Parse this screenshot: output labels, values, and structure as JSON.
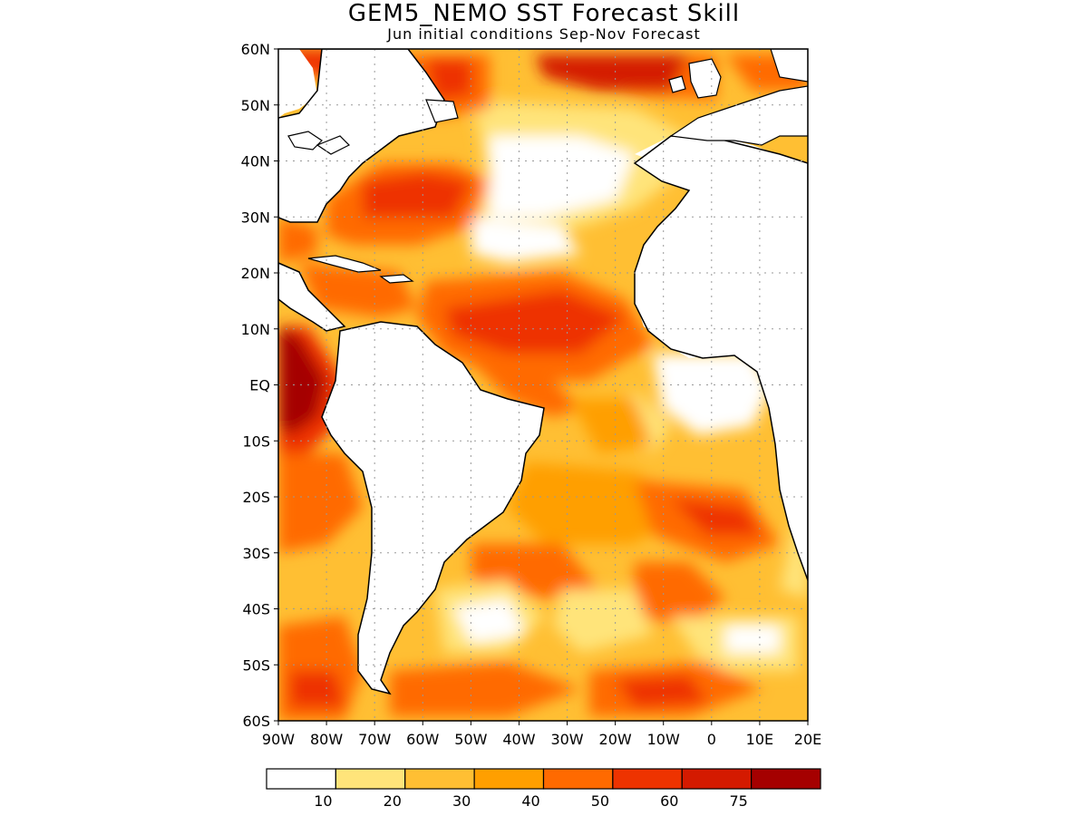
{
  "title": "GEM5_NEMO SST Forecast Skill",
  "subtitle": "Jun initial conditions  Sep-Nov Forecast",
  "lat_labels": [
    "60N",
    "50N",
    "40N",
    "30N",
    "20N",
    "10N",
    "EQ",
    "10S",
    "20S",
    "30S",
    "40S",
    "50S",
    "60S"
  ],
  "lon_labels": [
    "90W",
    "80W",
    "70W",
    "60W",
    "50W",
    "40W",
    "30W",
    "20W",
    "10W",
    "0",
    "10E",
    "20E"
  ],
  "colorbar": {
    "colors": [
      "#ffffff",
      "#ffe47a",
      "#ffbf33",
      "#ff9f00",
      "#ff6a00",
      "#ee3300",
      "#d41a00",
      "#a50000"
    ],
    "labels": [
      "10",
      "20",
      "30",
      "40",
      "50",
      "60",
      "75"
    ]
  },
  "colors": {
    "land": "#ffffff",
    "coast": "#000000",
    "grid": "#999999"
  }
}
